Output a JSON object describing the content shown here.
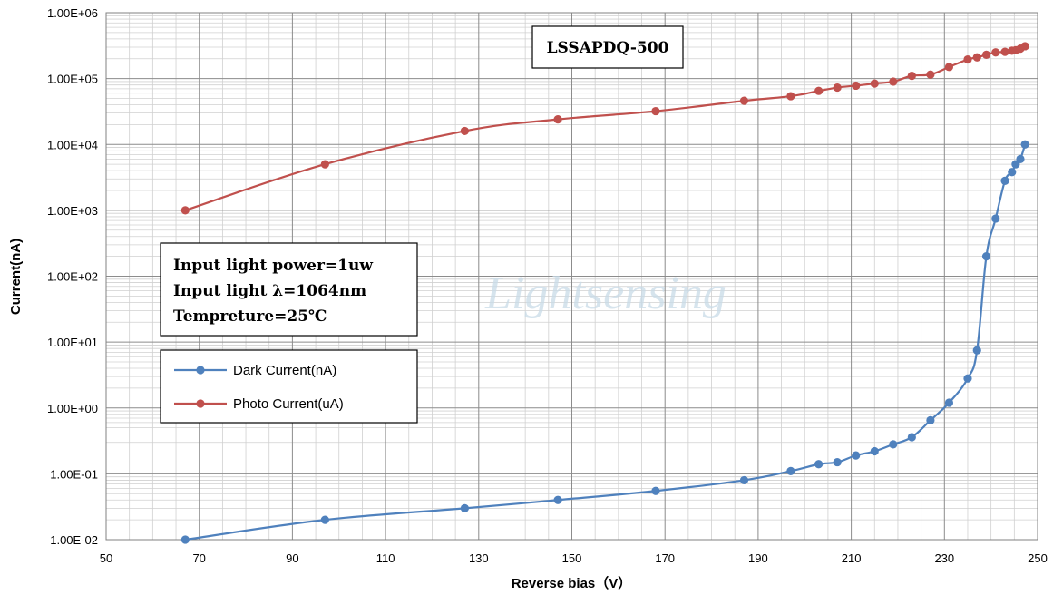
{
  "chart_data": {
    "type": "line",
    "xlabel": "Reverse bias（V）",
    "ylabel": "Current(nA)",
    "xlim": [
      50,
      250
    ],
    "ylim": [
      0.01,
      1000000
    ],
    "yscale": "log",
    "x_ticks": [
      "50",
      "70",
      "90",
      "110",
      "130",
      "150",
      "170",
      "190",
      "210",
      "230",
      "250"
    ],
    "y_ticks": [
      "1.00E-02",
      "1.00E-01",
      "1.00E+00",
      "1.00E+01",
      "1.00E+02",
      "1.00E+03",
      "1.00E+04",
      "1.00E+05",
      "1.00E+06"
    ],
    "grid": true,
    "legend_position": "left",
    "model_label": "LSSAPDQ-500",
    "conditions": [
      "Input light power=1uw",
      "Input light λ=1064nm",
      "Tempreture=25℃"
    ],
    "watermark": "Lightsensing",
    "series": [
      {
        "name": "Dark Current(nA)",
        "color": "#4f81bd",
        "points": [
          [
            67,
            0.01
          ],
          [
            97,
            0.02
          ],
          [
            127,
            0.03
          ],
          [
            147,
            0.04
          ],
          [
            168,
            0.055
          ],
          [
            187,
            0.08
          ],
          [
            197,
            0.11
          ],
          [
            203,
            0.14
          ],
          [
            207,
            0.15
          ],
          [
            211,
            0.19
          ],
          [
            215,
            0.22
          ],
          [
            219,
            0.28
          ],
          [
            223,
            0.36
          ],
          [
            227,
            0.65
          ],
          [
            231,
            1.2
          ],
          [
            235,
            2.8
          ],
          [
            237,
            7.5
          ],
          [
            239,
            200
          ],
          [
            241,
            750
          ],
          [
            243,
            2800
          ],
          [
            244.5,
            3800
          ],
          [
            245.3,
            5000
          ],
          [
            246.3,
            6000
          ],
          [
            247.3,
            10000
          ]
        ]
      },
      {
        "name": "Photo Current(uA)",
        "color": "#c0504d",
        "points": [
          [
            67,
            1000
          ],
          [
            97,
            5000
          ],
          [
            127,
            16000
          ],
          [
            147,
            24000
          ],
          [
            168,
            32000
          ],
          [
            187,
            46000
          ],
          [
            197,
            54000
          ],
          [
            203,
            65000
          ],
          [
            207,
            73000
          ],
          [
            211,
            78000
          ],
          [
            215,
            84000
          ],
          [
            219,
            90000
          ],
          [
            223,
            110000
          ],
          [
            227,
            115000
          ],
          [
            231,
            150000
          ],
          [
            235,
            195000
          ],
          [
            237,
            210000
          ],
          [
            239,
            230000
          ],
          [
            241,
            250000
          ],
          [
            243,
            255000
          ],
          [
            244.5,
            265000
          ],
          [
            245.3,
            270000
          ],
          [
            246.3,
            285000
          ],
          [
            247.3,
            310000
          ]
        ]
      }
    ]
  }
}
